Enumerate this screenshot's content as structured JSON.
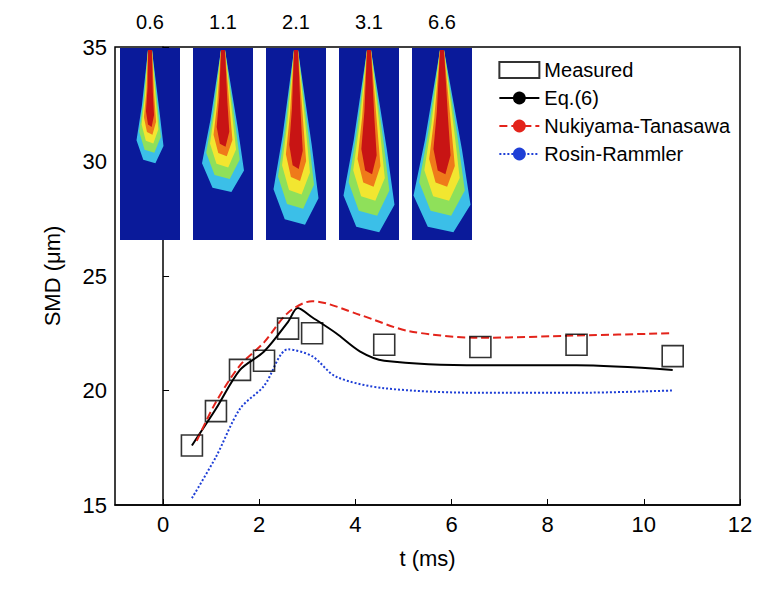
{
  "chart_data": {
    "type": "line",
    "xlabel": "t (ms)",
    "ylabel": "SMD (μm)",
    "xlim": [
      -1,
      12
    ],
    "xticks": [
      0,
      2,
      4,
      6,
      8,
      10,
      12
    ],
    "ylim": [
      15,
      35
    ],
    "yticks": [
      15,
      20,
      25,
      30,
      35
    ],
    "grid": false,
    "legend": "upper right",
    "image_times": [
      0.6,
      1.1,
      2.1,
      3.1,
      6.6
    ],
    "series": [
      {
        "name": "Measured",
        "type": "scatter",
        "marker": "square_open",
        "color": "#000000",
        "x": [
          0.6,
          1.1,
          1.6,
          2.1,
          2.6,
          3.1,
          4.6,
          6.6,
          8.6,
          10.6
        ],
        "values": [
          17.6,
          19.1,
          20.9,
          21.3,
          22.7,
          22.5,
          22.0,
          21.9,
          22.0,
          21.5
        ]
      },
      {
        "name": "Eq.(6)",
        "type": "line",
        "line_style": "solid",
        "color": "#000000",
        "x": [
          0.6,
          1.1,
          1.6,
          2.1,
          2.6,
          2.8,
          3.1,
          3.6,
          4.1,
          4.6,
          6.6,
          8.6,
          10.6
        ],
        "values": [
          17.6,
          19.2,
          20.9,
          21.7,
          23.0,
          23.6,
          23.2,
          22.5,
          21.7,
          21.3,
          21.1,
          21.1,
          20.9
        ]
      },
      {
        "name": "Nukiyama-Tanasawa",
        "type": "line",
        "line_style": "dashed",
        "color": "#e3241b",
        "x": [
          0.7,
          1.1,
          1.6,
          2.1,
          2.6,
          3.1,
          4.1,
          5.1,
          6.6,
          8.6,
          10.6
        ],
        "values": [
          17.8,
          19.5,
          21.1,
          22.1,
          23.4,
          23.9,
          23.3,
          22.6,
          22.3,
          22.4,
          22.5
        ]
      },
      {
        "name": "Rosin-Rammler",
        "type": "line",
        "line_style": "dotted",
        "color": "#1f3fd6",
        "x": [
          0.6,
          1.1,
          1.6,
          2.1,
          2.6,
          3.1,
          3.6,
          4.6,
          6.6,
          8.6,
          10.6
        ],
        "values": [
          15.3,
          17.1,
          19.2,
          20.2,
          21.8,
          21.5,
          20.6,
          20.1,
          19.9,
          19.9,
          20.0
        ]
      }
    ]
  }
}
